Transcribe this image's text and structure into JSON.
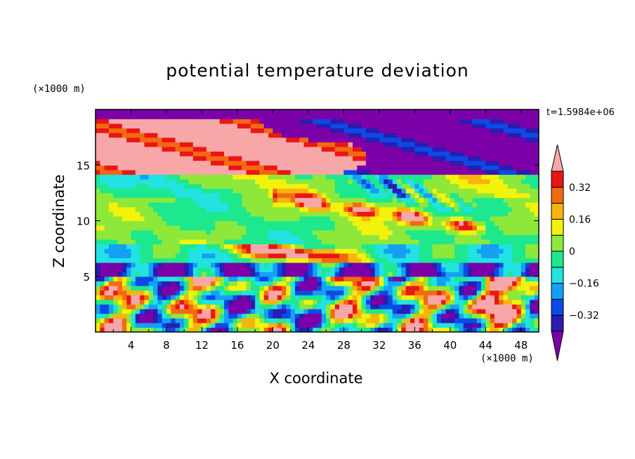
{
  "chart_data": {
    "type": "heatmap",
    "title": "potential temperature deviation",
    "xlabel": "X coordinate",
    "ylabel": "Z coordinate",
    "x_unit": "(×1000 m)",
    "y_unit": "(×1000 m)",
    "annotation": "t=1.5984e+06",
    "xlim": [
      0,
      50
    ],
    "ylim": [
      0,
      20
    ],
    "x_ticks": [
      4,
      8,
      12,
      16,
      20,
      24,
      28,
      32,
      36,
      40,
      44,
      48
    ],
    "x_tick_labels": [
      "4",
      "8",
      "12",
      "16",
      "20",
      "24",
      "28",
      "32",
      "36",
      "40",
      "44",
      "48"
    ],
    "y_ticks": [
      5,
      10,
      15
    ],
    "y_tick_labels": [
      "5",
      "10",
      "15"
    ],
    "colorbar": {
      "levels": [
        -0.4,
        -0.32,
        -0.24,
        -0.16,
        -0.08,
        0,
        0.08,
        0.16,
        0.24,
        0.32,
        0.4
      ],
      "labeled_values": [
        0.32,
        0.16,
        0,
        -0.16,
        -0.32
      ],
      "labels": [
        "0.32",
        "0.16",
        "0",
        "−0.16",
        "−0.32"
      ],
      "colors": [
        "#7c00a8",
        "#2c1cb0",
        "#0a4ae6",
        "#14a0f5",
        "#22e2e2",
        "#1ee88e",
        "#8ee83a",
        "#f2f20c",
        "#f8b40e",
        "#f26a10",
        "#ea1616",
        "#f7a7a7"
      ],
      "extend": "both"
    },
    "field_description": "2-D field of potential temperature deviation over X 0-50 and Z 0-20 (×1000 m); strongly negative (purple) and strongly positive (pink) regions in the upper layer above ~15, mixed near-zero values in mid layer, oscillating values near surface"
  }
}
